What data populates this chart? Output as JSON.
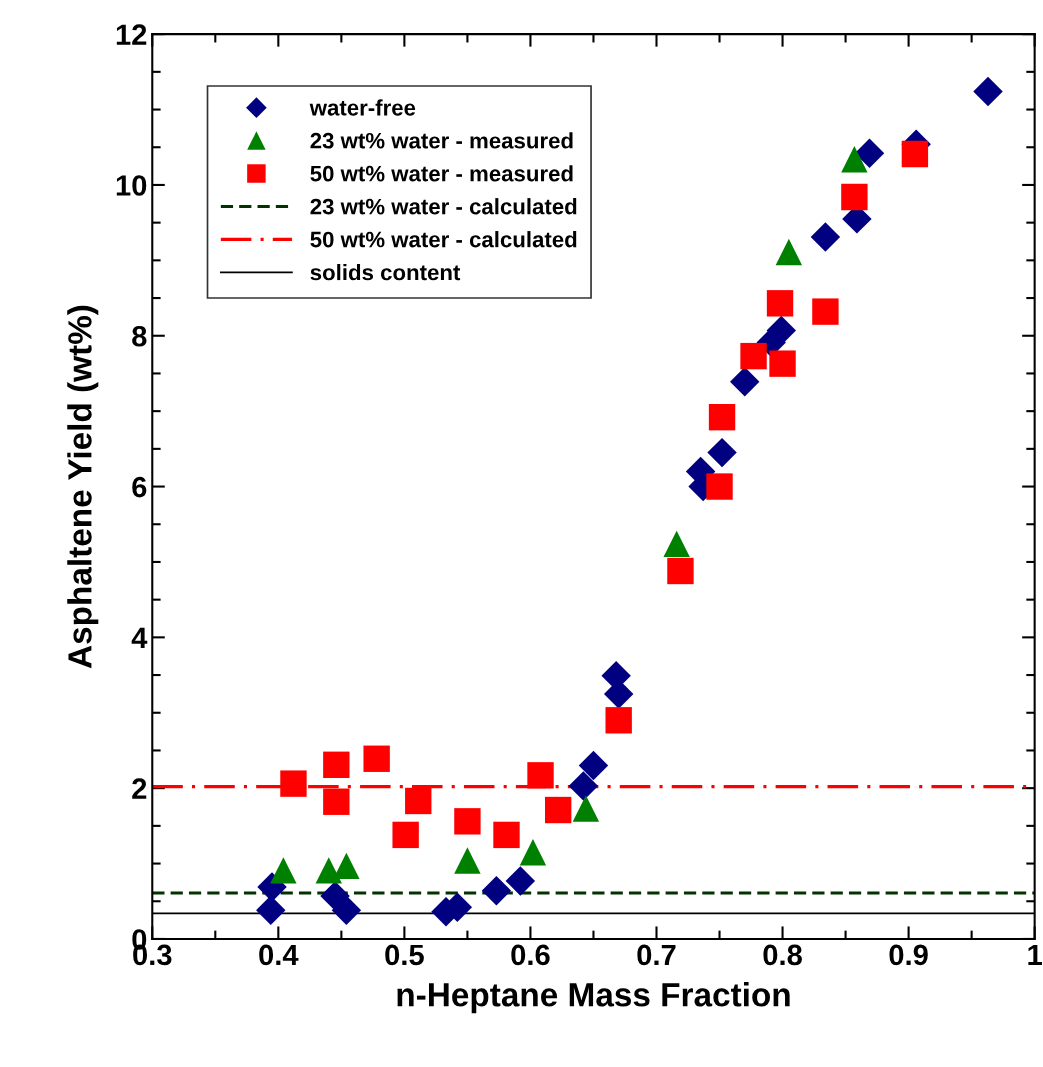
{
  "chart_data": {
    "type": "scatter",
    "xlabel": "n-Heptane Mass Fraction",
    "ylabel": "Asphaltene Yield (wt%)",
    "xlim": [
      0.3,
      1
    ],
    "ylim": [
      0,
      12
    ],
    "xticks": [
      0.3,
      0.4,
      0.5,
      0.6,
      0.7,
      0.8,
      0.9,
      1
    ],
    "yticks": [
      0,
      2,
      4,
      6,
      8,
      10,
      12
    ],
    "grid": false,
    "legend": "top left",
    "series": [
      {
        "name": "water-free",
        "color": "#000080",
        "marker": "diamond",
        "x": [
          0.395,
          0.394,
          0.445,
          0.454,
          0.533,
          0.542,
          0.573,
          0.592,
          0.642,
          0.65,
          0.668,
          0.67,
          0.735,
          0.737,
          0.752,
          0.77,
          0.791,
          0.799,
          0.834,
          0.859,
          0.869,
          0.906,
          0.963
        ],
        "values": [
          0.69,
          0.38,
          0.57,
          0.38,
          0.36,
          0.42,
          0.64,
          0.77,
          2.03,
          2.3,
          3.49,
          3.25,
          6.2,
          6.0,
          6.45,
          7.39,
          7.91,
          8.07,
          9.31,
          9.55,
          10.42,
          10.54,
          11.24
        ]
      },
      {
        "name": "23 wt% water - measured",
        "color": "#008000",
        "marker": "triangle",
        "x": [
          0.404,
          0.44,
          0.454,
          0.55,
          0.602,
          0.644,
          0.716,
          0.805,
          0.857
        ],
        "values": [
          0.91,
          0.91,
          0.97,
          1.04,
          1.15,
          1.73,
          5.24,
          9.11,
          10.34
        ]
      },
      {
        "name": "50 wt% water - measured",
        "color": "#ff0000",
        "marker": "square",
        "x": [
          0.412,
          0.446,
          0.446,
          0.478,
          0.511,
          0.501,
          0.55,
          0.581,
          0.608,
          0.622,
          0.67,
          0.719,
          0.75,
          0.752,
          0.777,
          0.8,
          0.798,
          0.834,
          0.857,
          0.905
        ],
        "values": [
          2.06,
          2.31,
          1.82,
          2.39,
          1.83,
          1.38,
          1.56,
          1.38,
          2.17,
          1.71,
          2.9,
          4.88,
          6.0,
          6.92,
          7.73,
          7.63,
          8.43,
          8.32,
          9.84,
          10.41
        ]
      }
    ],
    "ref_lines": [
      {
        "axis": "y",
        "value": 0.61,
        "label": "23 wt% water - calculated",
        "color": "#003300",
        "line_style": "dashed"
      },
      {
        "axis": "y",
        "value": 2.02,
        "label": "50 wt% water - calculated",
        "color": "#ff0000",
        "line_style": "dashdot"
      },
      {
        "axis": "y",
        "value": 0.34,
        "label": "solids content",
        "color": "#000000",
        "line_style": "solid"
      }
    ]
  }
}
